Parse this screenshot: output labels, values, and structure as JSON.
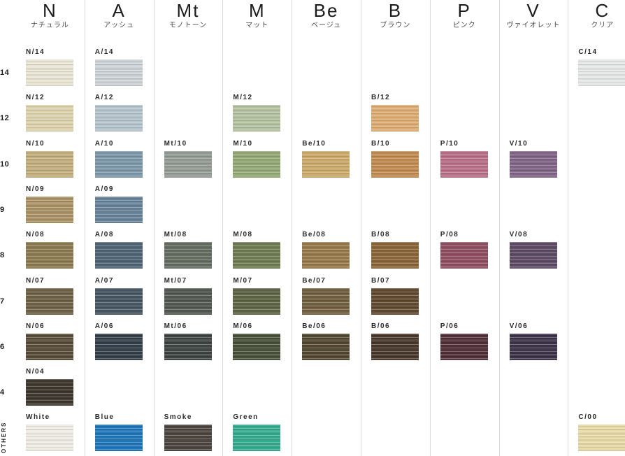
{
  "title": "hair-color-tone-level-swatch-chart",
  "columns": [
    {
      "id": "N",
      "letter": "N",
      "kana": "ナチュラル"
    },
    {
      "id": "A",
      "letter": "A",
      "kana": "アッシュ"
    },
    {
      "id": "Mt",
      "letter": "Mt",
      "kana": "モノトーン"
    },
    {
      "id": "M",
      "letter": "M",
      "kana": "マット"
    },
    {
      "id": "Be",
      "letter": "Be",
      "kana": "ベージュ"
    },
    {
      "id": "B",
      "letter": "B",
      "kana": "ブラウン"
    },
    {
      "id": "P",
      "letter": "P",
      "kana": "ピンク"
    },
    {
      "id": "V",
      "letter": "V",
      "kana": "ヴァイオレット"
    },
    {
      "id": "C",
      "letter": "C",
      "kana": "クリア"
    }
  ],
  "others_label": "OTHERS",
  "chart_data": {
    "type": "table",
    "title": "Hair color chart: tone families (columns) by lightness levels (rows)",
    "column_labels": [
      "N",
      "A",
      "Mt",
      "M",
      "Be",
      "B",
      "P",
      "V",
      "C"
    ],
    "column_names": [
      "ナチュラル",
      "アッシュ",
      "モノトーン",
      "マット",
      "ベージュ",
      "ブラウン",
      "ピンク",
      "ヴァイオレット",
      "クリア"
    ],
    "row_labels": [
      "14",
      "12",
      "10",
      "9",
      "8",
      "7",
      "6",
      "4",
      "OTHERS"
    ],
    "rows": [
      {
        "level": "14",
        "cells": [
          {
            "col": "N",
            "label": "N/14",
            "color": "#e9e5d4"
          },
          {
            "col": "A",
            "label": "A/14",
            "color": "#cdd3d6"
          },
          {
            "col": "C",
            "label": "C/14",
            "color": "#e6e8e8"
          }
        ]
      },
      {
        "level": "12",
        "cells": [
          {
            "col": "N",
            "label": "N/12",
            "color": "#ddd2ae"
          },
          {
            "col": "A",
            "label": "A/12",
            "color": "#b4c3cc"
          },
          {
            "col": "M",
            "label": "M/12",
            "color": "#b4c2a2"
          },
          {
            "col": "B",
            "label": "B/12",
            "color": "#ddac72"
          }
        ]
      },
      {
        "level": "10",
        "cells": [
          {
            "col": "N",
            "label": "N/10",
            "color": "#c2ae7d"
          },
          {
            "col": "A",
            "label": "A/10",
            "color": "#7b97a8"
          },
          {
            "col": "Mt",
            "label": "Mt/10",
            "color": "#949a94"
          },
          {
            "col": "M",
            "label": "M/10",
            "color": "#93a874"
          },
          {
            "col": "Be",
            "label": "Be/10",
            "color": "#cba96a"
          },
          {
            "col": "B",
            "label": "B/10",
            "color": "#c08a50"
          },
          {
            "col": "P",
            "label": "P/10",
            "color": "#b76e86"
          },
          {
            "col": "V",
            "label": "V/10",
            "color": "#7f6486"
          }
        ]
      },
      {
        "level": "9",
        "cells": [
          {
            "col": "N",
            "label": "N/09",
            "color": "#aa9166"
          },
          {
            "col": "A",
            "label": "A/09",
            "color": "#688299"
          }
        ]
      },
      {
        "level": "8",
        "cells": [
          {
            "col": "N",
            "label": "N/08",
            "color": "#8b7950"
          },
          {
            "col": "A",
            "label": "A/08",
            "color": "#4e6374"
          },
          {
            "col": "Mt",
            "label": "Mt/08",
            "color": "#646c62"
          },
          {
            "col": "M",
            "label": "M/08",
            "color": "#6e7b50"
          },
          {
            "col": "Be",
            "label": "Be/08",
            "color": "#967849"
          },
          {
            "col": "B",
            "label": "B/08",
            "color": "#8a6437"
          },
          {
            "col": "P",
            "label": "P/08",
            "color": "#8e4d60"
          },
          {
            "col": "V",
            "label": "V/08",
            "color": "#5d4b65"
          }
        ]
      },
      {
        "level": "7",
        "cells": [
          {
            "col": "N",
            "label": "N/07",
            "color": "#6e6045"
          },
          {
            "col": "A",
            "label": "A/07",
            "color": "#455561"
          },
          {
            "col": "Mt",
            "label": "Mt/07",
            "color": "#515750"
          },
          {
            "col": "M",
            "label": "M/07",
            "color": "#5c6343"
          },
          {
            "col": "Be",
            "label": "Be/07",
            "color": "#705e3e"
          },
          {
            "col": "B",
            "label": "B/07",
            "color": "#60482e"
          }
        ]
      },
      {
        "level": "6",
        "cells": [
          {
            "col": "N",
            "label": "N/06",
            "color": "#584c38"
          },
          {
            "col": "A",
            "label": "A/06",
            "color": "#323e48"
          },
          {
            "col": "Mt",
            "label": "Mt/06",
            "color": "#3e4442"
          },
          {
            "col": "M",
            "label": "M/06",
            "color": "#474f38"
          },
          {
            "col": "Be",
            "label": "Be/06",
            "color": "#524731"
          },
          {
            "col": "B",
            "label": "B/06",
            "color": "#48382c"
          },
          {
            "col": "P",
            "label": "P/06",
            "color": "#512f38"
          },
          {
            "col": "V",
            "label": "V/06",
            "color": "#3d3348"
          }
        ]
      },
      {
        "level": "4",
        "cells": [
          {
            "col": "N",
            "label": "N/04",
            "color": "#3c352b"
          }
        ]
      },
      {
        "level": "OTHERS",
        "cells": [
          {
            "col": "N",
            "label": "White",
            "color": "#eeece3"
          },
          {
            "col": "A",
            "label": "Blue",
            "color": "#1f76b8"
          },
          {
            "col": "Mt",
            "label": "Smoke",
            "color": "#4c443f"
          },
          {
            "col": "M",
            "label": "Green",
            "color": "#35ab8e"
          },
          {
            "col": "C",
            "label": "C/00",
            "color": "#e7daa7"
          }
        ]
      }
    ]
  }
}
